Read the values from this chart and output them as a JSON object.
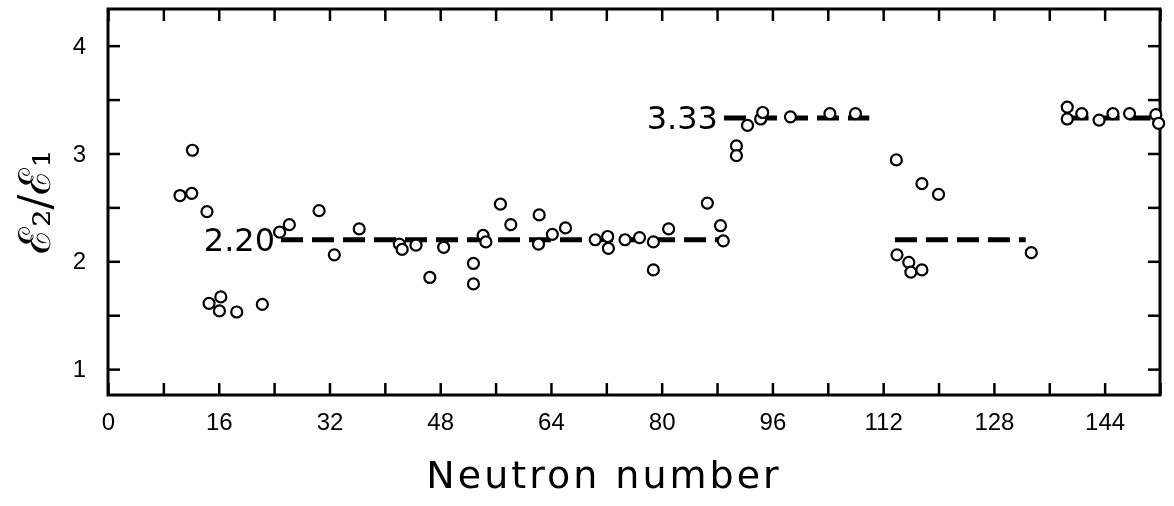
{
  "chart_data": {
    "type": "scatter",
    "xlabel": "Neutron number",
    "ylabel": "ℰ₂/ℰ₁",
    "xlim": [
      0,
      152
    ],
    "ylim": [
      0.76,
      4.34
    ],
    "xticks": [
      0,
      {
        "value": 8,
        "label": null
      },
      16,
      {
        "value": 24,
        "label": null
      },
      32,
      {
        "value": 40,
        "label": null
      },
      48,
      {
        "value": 56,
        "label": null
      },
      64,
      {
        "value": 72,
        "label": null
      },
      80,
      {
        "value": 88,
        "label": null
      },
      96,
      {
        "value": 104,
        "label": null
      },
      112,
      {
        "value": 120,
        "label": null
      },
      128,
      {
        "value": 136,
        "label": null
      },
      144,
      {
        "value": 152,
        "label": null
      }
    ],
    "yticks": [
      1,
      {
        "value": 1.5,
        "label": null
      },
      2,
      {
        "value": 2.5,
        "label": null
      },
      3,
      {
        "value": 3.5,
        "label": null
      },
      4
    ],
    "grid": false,
    "series": [
      {
        "marker": "circle",
        "color": "#000000",
        "x": [
          10.4,
          12.1,
          12.2,
          14.3,
          14.6,
          16.3,
          16.1,
          18.6,
          22.3,
          24.8,
          26.2,
          30.5,
          32.7,
          36.3,
          42.1,
          42.5,
          44.5,
          46.5,
          48.5,
          52.8,
          52.8,
          54.2,
          54.6,
          56.7,
          58.2,
          62.3,
          62.2,
          64.2,
          66.1,
          70.4,
          72.2,
          72.3,
          74.7,
          76.8,
          78.8,
          78.8,
          81.0,
          86.6,
          88.5,
          88.9,
          90.8,
          90.8,
          92.4,
          94.3,
          94.6,
          98.6,
          104.3,
          108.0,
          113.9,
          114.0,
          115.7,
          116.0,
          117.6,
          117.6,
          120.0,
          133.4,
          138.6,
          138.6,
          140.7,
          143.2,
          145.2,
          147.6,
          151.4,
          151.8
        ],
        "values": [
          2.61,
          2.63,
          3.03,
          2.46,
          1.61,
          1.67,
          1.54,
          1.53,
          1.6,
          2.27,
          2.34,
          2.47,
          2.06,
          2.3,
          2.16,
          2.11,
          2.15,
          1.85,
          2.13,
          1.98,
          1.79,
          2.24,
          2.18,
          2.53,
          2.34,
          2.43,
          2.16,
          2.25,
          2.31,
          2.2,
          2.23,
          2.12,
          2.2,
          2.22,
          2.18,
          1.92,
          2.3,
          2.54,
          2.33,
          2.19,
          3.07,
          2.98,
          3.26,
          3.32,
          3.38,
          3.34,
          3.37,
          3.37,
          2.94,
          2.06,
          1.99,
          1.9,
          1.92,
          2.72,
          2.62,
          2.08,
          3.43,
          3.32,
          3.37,
          3.31,
          3.37,
          3.37,
          3.36,
          3.28
        ]
      },
      {
        "type": "line",
        "color": "#000000",
        "line_style": "dashed",
        "x": [
          25,
          89
        ],
        "values": [
          2.2,
          2.2
        ]
      },
      {
        "type": "line",
        "color": "#000000",
        "line_style": "dashed",
        "x": [
          89,
          110
        ],
        "values": [
          3.33,
          3.33
        ]
      },
      {
        "type": "line",
        "color": "#000000",
        "line_style": "dashed",
        "x": [
          113.7,
          132.6
        ],
        "values": [
          2.2,
          2.2
        ]
      },
      {
        "type": "line",
        "color": "#000000",
        "line_style": "dashed",
        "x": [
          138.5,
          151.7
        ],
        "values": [
          3.33,
          3.33
        ]
      }
    ],
    "annotations": [
      {
        "text": "2.20",
        "x": 25,
        "y": 2.2
      },
      {
        "text": "3.33",
        "x": 89,
        "y": 3.33
      }
    ]
  }
}
